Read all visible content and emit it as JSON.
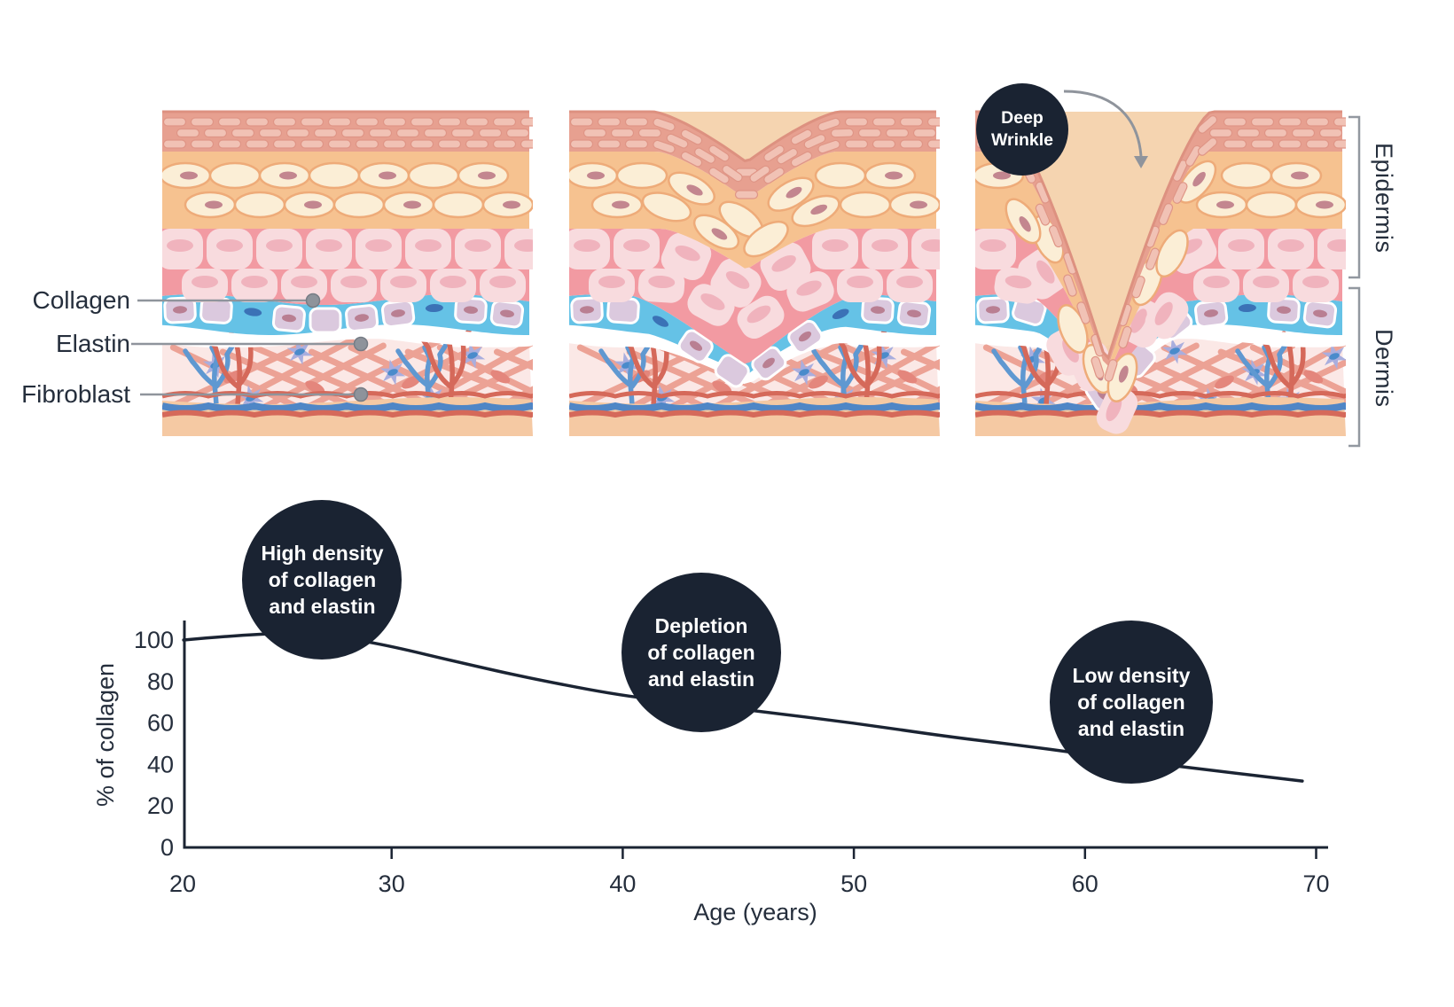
{
  "figure": {
    "skin_labels": {
      "collagen": "Collagen",
      "elastin": "Elastin",
      "fibroblast": "Fibroblast"
    },
    "layer_labels": {
      "epidermis": "Epidermis",
      "dermis": "Dermis"
    },
    "deep_wrinkle_lines": [
      "Deep",
      "Wrinkle"
    ]
  },
  "chart_data": {
    "type": "line",
    "xlabel": "Age (years)",
    "ylabel": "% of collagen",
    "x_ticks": [
      20,
      30,
      40,
      50,
      60,
      70
    ],
    "y_ticks": [
      0,
      20,
      40,
      60,
      80,
      100
    ],
    "xlim": [
      20,
      71
    ],
    "ylim": [
      0,
      110
    ],
    "grid": false,
    "legend": false,
    "series": [
      {
        "name": "% of collagen",
        "x": [
          21,
          23,
          25.5,
          28,
          30,
          33,
          36,
          40,
          43,
          46,
          50,
          54,
          57,
          60,
          63,
          66,
          69.4
        ],
        "y": [
          100,
          102,
          103.5,
          101,
          97,
          89,
          81.5,
          73,
          69.5,
          65.5,
          60,
          53.5,
          49.5,
          45,
          40.5,
          36.5,
          32
        ]
      }
    ],
    "annotations": [
      {
        "lines": [
          "High density",
          "of collagen",
          "and elastin"
        ],
        "age": 27,
        "pct": 129
      },
      {
        "lines": [
          "Depletion",
          "of collagen",
          "and elastin"
        ],
        "age": 43.4,
        "pct": 94
      },
      {
        "lines": [
          "Low density",
          "of collagen",
          "and elastin"
        ],
        "age": 62,
        "pct": 70
      }
    ]
  },
  "colors": {
    "bubble_bg": "#1a2332",
    "line": "#1b2433",
    "text": "#252e3c",
    "leader": "#8f949c",
    "skin_rose_top": "#e7a090",
    "skin_cream": "#f6c290",
    "skin_pink": "#f29aa2",
    "skin_basal_blue": "#65c2e6",
    "skin_dermis_bg": "#fbe8e6",
    "skin_subcutis": "#f5c9a3"
  }
}
